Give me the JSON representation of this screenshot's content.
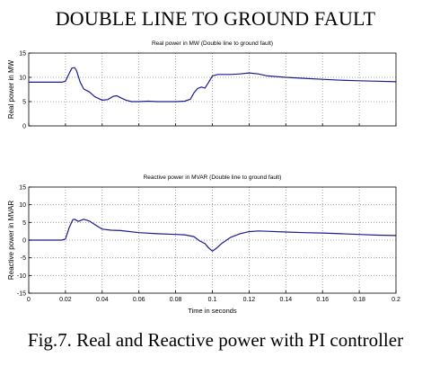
{
  "header": {
    "title": "DOUBLE LINE TO GROUND FAULT"
  },
  "footer": {
    "caption": "Fig.7. Real and Reactive power with PI controller"
  },
  "colors": {
    "series": "#1c1c8c",
    "axes": "#000000",
    "grid": "#8a8a8a",
    "background": "#ffffff"
  },
  "chart_data": [
    {
      "type": "line",
      "title": "Real power in MW (Double line to ground fault)",
      "xlabel": "",
      "ylabel": "Real power in MW",
      "xlim": [
        0,
        0.2
      ],
      "ylim": [
        0,
        15
      ],
      "xticks": [
        0,
        0.02,
        0.04,
        0.06,
        0.08,
        0.1,
        0.12,
        0.14,
        0.16,
        0.18,
        0.2
      ],
      "xtick_labels": [
        "",
        "",
        "",
        "",
        "",
        "",
        "",
        "",
        "",
        "",
        ""
      ],
      "yticks": [
        0,
        5,
        10,
        15
      ],
      "ytick_labels": [
        "0",
        "5",
        "10",
        "15"
      ],
      "grid": true,
      "series": [
        {
          "x": [
            0,
            0.018,
            0.02,
            0.022,
            0.0235,
            0.025,
            0.026,
            0.028,
            0.03,
            0.033,
            0.036,
            0.04,
            0.043,
            0.046,
            0.048,
            0.05,
            0.053,
            0.056,
            0.06,
            0.065,
            0.07,
            0.075,
            0.08,
            0.085,
            0.088,
            0.09,
            0.092,
            0.094,
            0.096,
            0.098,
            0.1,
            0.103,
            0.106,
            0.11,
            0.115,
            0.12,
            0.125,
            0.13,
            0.14,
            0.15,
            0.16,
            0.17,
            0.18,
            0.19,
            0.2
          ],
          "y": [
            9,
            9,
            9.2,
            10.8,
            11.9,
            12,
            11.4,
            9,
            7.6,
            7,
            6,
            5.3,
            5.4,
            6.1,
            6.2,
            5.8,
            5.3,
            5,
            5,
            5.1,
            5,
            5,
            5,
            5.1,
            5.5,
            6.8,
            7.7,
            8,
            7.8,
            9,
            10.3,
            10.6,
            10.6,
            10.6,
            10.7,
            10.9,
            10.7,
            10.3,
            10,
            9.8,
            9.6,
            9.4,
            9.3,
            9.2,
            9.1
          ]
        }
      ]
    },
    {
      "type": "line",
      "title": "Reactive power in MVAR (Double line to ground fault)",
      "xlabel": "Time in seconds",
      "ylabel": "Reactive power in MVAR",
      "xlim": [
        0,
        0.2
      ],
      "ylim": [
        -15,
        15
      ],
      "xticks": [
        0,
        0.02,
        0.04,
        0.06,
        0.08,
        0.1,
        0.12,
        0.14,
        0.16,
        0.18,
        0.2
      ],
      "xtick_labels": [
        "0",
        "0.02",
        "0.04",
        "0.06",
        "0.08",
        "0.1",
        "0.12",
        "0.14",
        "0.16",
        "0.18",
        "0.2"
      ],
      "yticks": [
        -15,
        -10,
        -5,
        0,
        5,
        10,
        15
      ],
      "ytick_labels": [
        "-15",
        "-10",
        "-5",
        "0",
        "5",
        "10",
        "15"
      ],
      "grid": true,
      "series": [
        {
          "x": [
            0,
            0.018,
            0.02,
            0.022,
            0.024,
            0.025,
            0.027,
            0.03,
            0.033,
            0.036,
            0.04,
            0.045,
            0.05,
            0.06,
            0.07,
            0.08,
            0.085,
            0.09,
            0.093,
            0.096,
            0.098,
            0.1,
            0.102,
            0.105,
            0.11,
            0.115,
            0.12,
            0.125,
            0.13,
            0.14,
            0.15,
            0.16,
            0.17,
            0.18,
            0.19,
            0.2
          ],
          "y": [
            0,
            0,
            0.3,
            3.5,
            5.8,
            5.9,
            5.3,
            5.9,
            5.4,
            4.4,
            3.1,
            2.8,
            2.7,
            2.1,
            1.8,
            1.6,
            1.5,
            1,
            -0.2,
            -1,
            -2.2,
            -3.1,
            -2.4,
            -1,
            0.8,
            1.8,
            2.4,
            2.6,
            2.5,
            2.3,
            2.1,
            2,
            1.8,
            1.6,
            1.4,
            1.3
          ]
        }
      ]
    }
  ]
}
